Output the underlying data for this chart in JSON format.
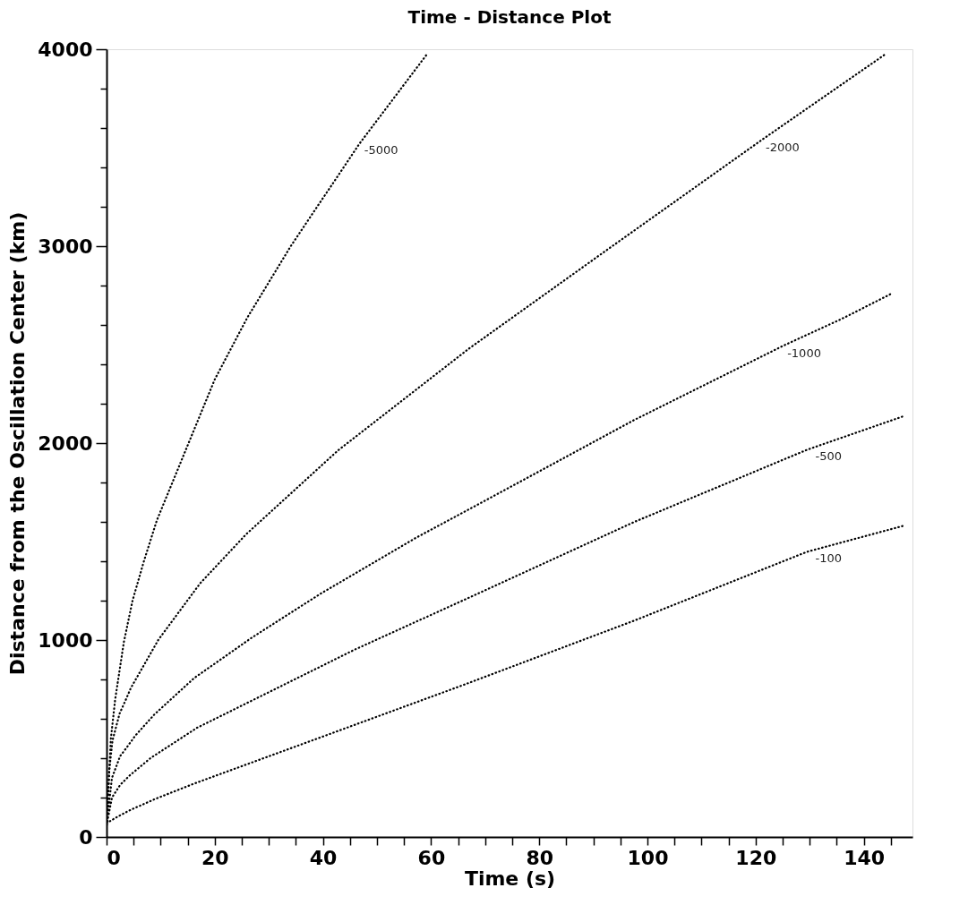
{
  "chart_data": {
    "type": "line",
    "title": "Time - Distance Plot",
    "xlabel": "Time (s)",
    "ylabel": "Distance from the Oscillation Center (km)",
    "xlim": [
      0,
      149
    ],
    "ylim": [
      0,
      4000
    ],
    "xticks": [
      0,
      {
        "value": 5,
        "label": null
      },
      {
        "value": 10,
        "label": null
      },
      {
        "value": 15,
        "label": null
      },
      20,
      {
        "value": 25,
        "label": null
      },
      {
        "value": 30,
        "label": null
      },
      {
        "value": 35,
        "label": null
      },
      40,
      {
        "value": 45,
        "label": null
      },
      {
        "value": 50,
        "label": null
      },
      {
        "value": 55,
        "label": null
      },
      60,
      {
        "value": 65,
        "label": null
      },
      {
        "value": 70,
        "label": null
      },
      {
        "value": 75,
        "label": null
      },
      80,
      {
        "value": 85,
        "label": null
      },
      {
        "value": 90,
        "label": null
      },
      {
        "value": 95,
        "label": null
      },
      100,
      {
        "value": 105,
        "label": null
      },
      {
        "value": 110,
        "label": null
      },
      {
        "value": 115,
        "label": null
      },
      120,
      {
        "value": 125,
        "label": null
      },
      {
        "value": 130,
        "label": null
      },
      {
        "value": 135,
        "label": null
      },
      140,
      {
        "value": 145,
        "label": null
      }
    ],
    "yticks": [
      0,
      {
        "value": 200,
        "label": null
      },
      {
        "value": 400,
        "label": null
      },
      {
        "value": 600,
        "label": null
      },
      {
        "value": 800,
        "label": null
      },
      1000,
      {
        "value": 1200,
        "label": null
      },
      {
        "value": 1400,
        "label": null
      },
      {
        "value": 1600,
        "label": null
      },
      {
        "value": 1800,
        "label": null
      },
      2000,
      {
        "value": 2200,
        "label": null
      },
      {
        "value": 2400,
        "label": null
      },
      {
        "value": 2600,
        "label": null
      },
      {
        "value": 2800,
        "label": null
      },
      3000,
      {
        "value": 3200,
        "label": null
      },
      {
        "value": 3400,
        "label": null
      },
      {
        "value": 3600,
        "label": null
      },
      {
        "value": 3800,
        "label": null
      },
      4000
    ],
    "grid": false,
    "marker": "none",
    "line_style": "dotted",
    "series": [
      {
        "name": "-5000",
        "color": "#000000",
        "x": [
          0,
          0.8,
          1.6,
          3.2,
          4.8,
          6.9,
          9.3,
          20,
          26,
          34.1,
          46.8,
          59.3
        ],
        "values": [
          60,
          500,
          700,
          990,
          1200,
          1400,
          1608,
          2323,
          2636,
          3002,
          3522,
          3977
        ]
      },
      {
        "name": "-2000",
        "color": "#000000",
        "x": [
          0,
          0.3,
          0.5,
          1.1,
          2.4,
          3.5,
          4.5,
          9.6,
          17.3,
          25.8,
          42.8,
          67,
          92,
          121,
          144.1
        ],
        "values": [
          60,
          210,
          340,
          490,
          626,
          693,
          757,
          1002,
          1288,
          1537,
          1963,
          2480,
          2971,
          3537,
          3977
        ]
      },
      {
        "name": "-1000",
        "color": "#000000",
        "x": [
          0,
          1,
          2.5,
          3.8,
          5.3,
          8.8,
          16.2,
          26.9,
          39.6,
          57.2,
          68.3,
          97.6,
          125,
          136.3,
          145.4
        ],
        "values": [
          60,
          300,
          410,
          457,
          514,
          621,
          807,
          1013,
          1236,
          1519,
          1683,
          2118,
          2493,
          2636,
          2763
        ]
      },
      {
        "name": "-500",
        "color": "#000000",
        "x": [
          0,
          1,
          2.5,
          4.3,
          8.2,
          16.7,
          46,
          67,
          97.6,
          129.5,
          147.3
        ],
        "values": [
          60,
          200,
          264,
          313,
          402,
          554,
          953,
          1215,
          1600,
          1966,
          2136
        ]
      },
      {
        "name": "-100",
        "color": "#000000",
        "x": [
          0,
          2.1,
          4.4,
          9,
          16.2,
          39.6,
          65.7,
          97.6,
          129.5,
          147.6
        ],
        "values": [
          70,
          104,
          137,
          193,
          271,
          506,
          769,
          1099,
          1448,
          1582
        ]
      }
    ]
  }
}
